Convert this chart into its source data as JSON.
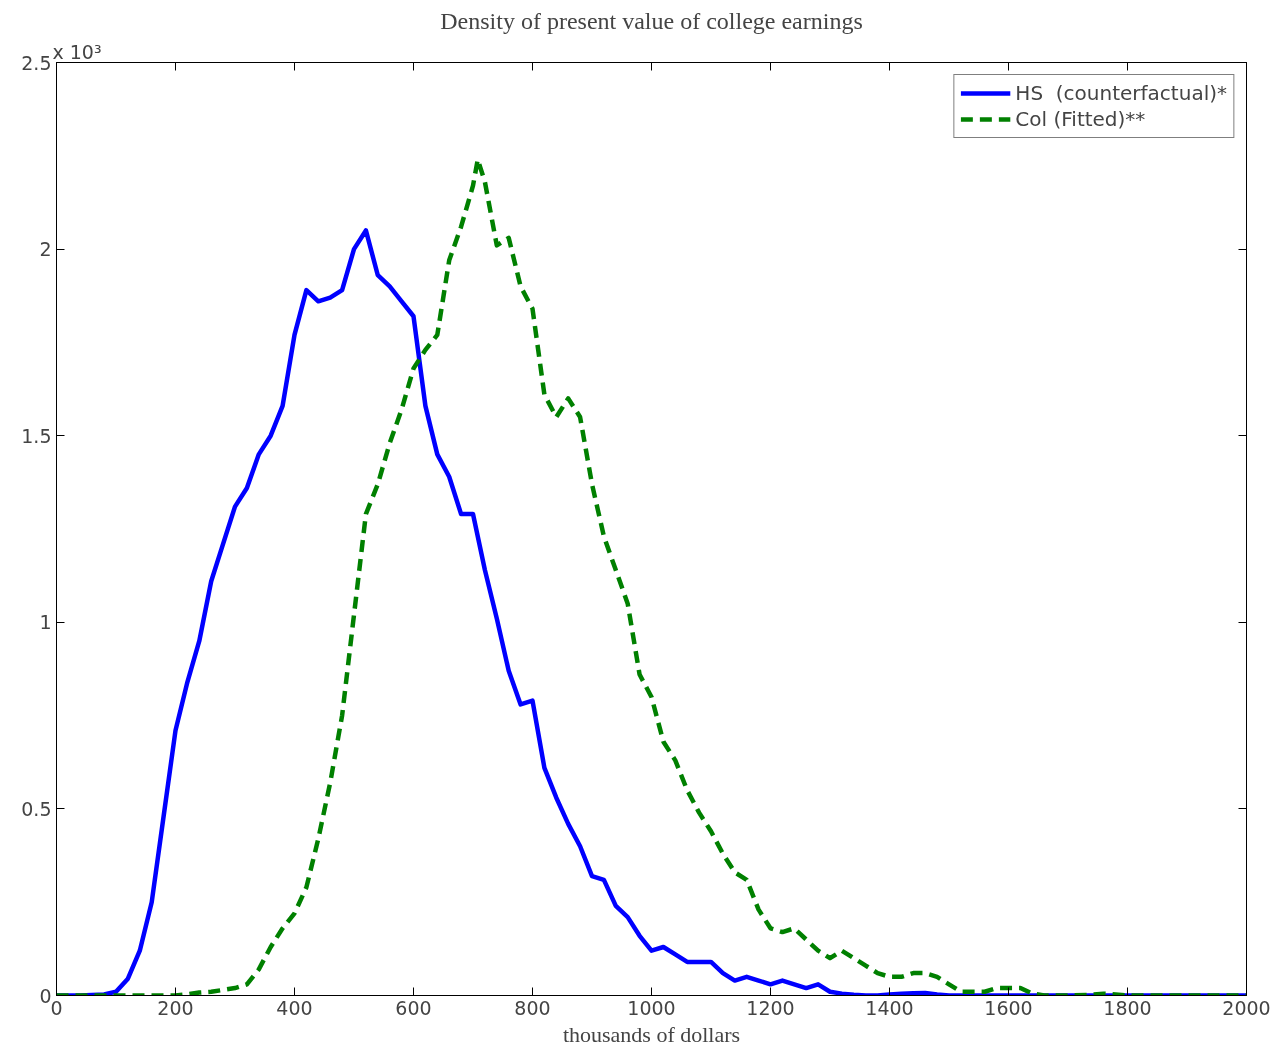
{
  "chart_data": {
    "type": "line",
    "title": "Density of present value of college earnings",
    "xlabel": "thousands of dollars",
    "annotations": [
      "x 10³"
    ],
    "xlim": [
      0,
      2000
    ],
    "xticks": [
      0,
      200,
      400,
      600,
      800,
      1000,
      1200,
      1400,
      1600,
      1800,
      2000
    ],
    "ylim": [
      0,
      2.5
    ],
    "yticks": [
      0,
      0.5,
      1,
      1.5,
      2,
      2.5
    ],
    "grid": false,
    "legend": "top right",
    "series": [
      {
        "name": "HS  (counterfactual)*",
        "color": "#0000ff",
        "line_style": "solid",
        "x": [
          0,
          40,
          80,
          100,
          120,
          140,
          160,
          180,
          200,
          220,
          240,
          260,
          280,
          300,
          320,
          340,
          360,
          380,
          400,
          420,
          440,
          460,
          480,
          500,
          520,
          540,
          560,
          580,
          600,
          620,
          640,
          660,
          680,
          700,
          720,
          740,
          760,
          780,
          800,
          820,
          840,
          860,
          880,
          900,
          920,
          940,
          960,
          980,
          1000,
          1020,
          1040,
          1060,
          1080,
          1100,
          1120,
          1140,
          1160,
          1180,
          1200,
          1220,
          1240,
          1260,
          1280,
          1300,
          1320,
          1340,
          1360,
          1380,
          1400,
          1420,
          1440,
          1460,
          1480,
          1500,
          2000
        ],
        "values": [
          0,
          0,
          0.003,
          0.01,
          0.045,
          0.12,
          0.25,
          0.48,
          0.71,
          0.84,
          0.95,
          1.11,
          1.21,
          1.31,
          1.36,
          1.45,
          1.5,
          1.58,
          1.77,
          1.89,
          1.86,
          1.87,
          1.89,
          2.0,
          2.05,
          1.93,
          1.9,
          1.86,
          1.82,
          1.58,
          1.45,
          1.39,
          1.29,
          1.29,
          1.14,
          1.01,
          0.87,
          0.78,
          0.79,
          0.61,
          0.53,
          0.46,
          0.4,
          0.32,
          0.31,
          0.24,
          0.21,
          0.16,
          0.12,
          0.13,
          0.11,
          0.09,
          0.09,
          0.09,
          0.06,
          0.04,
          0.05,
          0.04,
          0.03,
          0.04,
          0.03,
          0.02,
          0.03,
          0.01,
          0.005,
          0.002,
          0,
          0,
          0.003,
          0.005,
          0.006,
          0.007,
          0.003,
          0,
          0
        ]
      },
      {
        "name": "Col (Fitted)**",
        "color": "#008000",
        "line_style": "dashed",
        "x": [
          0,
          200,
          220,
          240,
          260,
          280,
          300,
          320,
          340,
          360,
          380,
          400,
          420,
          440,
          460,
          480,
          500,
          520,
          540,
          560,
          580,
          600,
          620,
          640,
          660,
          680,
          700,
          708,
          720,
          740,
          760,
          780,
          800,
          820,
          840,
          860,
          880,
          900,
          920,
          940,
          960,
          980,
          1000,
          1020,
          1040,
          1060,
          1080,
          1100,
          1120,
          1140,
          1160,
          1180,
          1200,
          1220,
          1240,
          1260,
          1280,
          1300,
          1320,
          1340,
          1360,
          1380,
          1400,
          1420,
          1440,
          1460,
          1480,
          1500,
          1520,
          1540,
          1560,
          1580,
          1600,
          1620,
          1640,
          1660,
          1700,
          1740,
          1760,
          1780,
          1800,
          2000
        ],
        "values": [
          0,
          0,
          0.003,
          0.008,
          0.01,
          0.015,
          0.02,
          0.03,
          0.07,
          0.13,
          0.18,
          0.22,
          0.29,
          0.42,
          0.57,
          0.75,
          1.02,
          1.29,
          1.37,
          1.48,
          1.57,
          1.68,
          1.73,
          1.77,
          1.97,
          2.06,
          2.17,
          2.24,
          2.18,
          2.01,
          2.03,
          1.9,
          1.84,
          1.61,
          1.55,
          1.6,
          1.55,
          1.37,
          1.23,
          1.14,
          1.05,
          0.86,
          0.8,
          0.68,
          0.63,
          0.55,
          0.49,
          0.44,
          0.38,
          0.33,
          0.31,
          0.23,
          0.18,
          0.17,
          0.18,
          0.15,
          0.12,
          0.1,
          0.12,
          0.1,
          0.08,
          0.06,
          0.05,
          0.05,
          0.06,
          0.06,
          0.05,
          0.03,
          0.01,
          0.01,
          0.01,
          0.02,
          0.02,
          0.02,
          0.005,
          0,
          0,
          0.002,
          0.005,
          0.003,
          0,
          0
        ]
      }
    ]
  }
}
